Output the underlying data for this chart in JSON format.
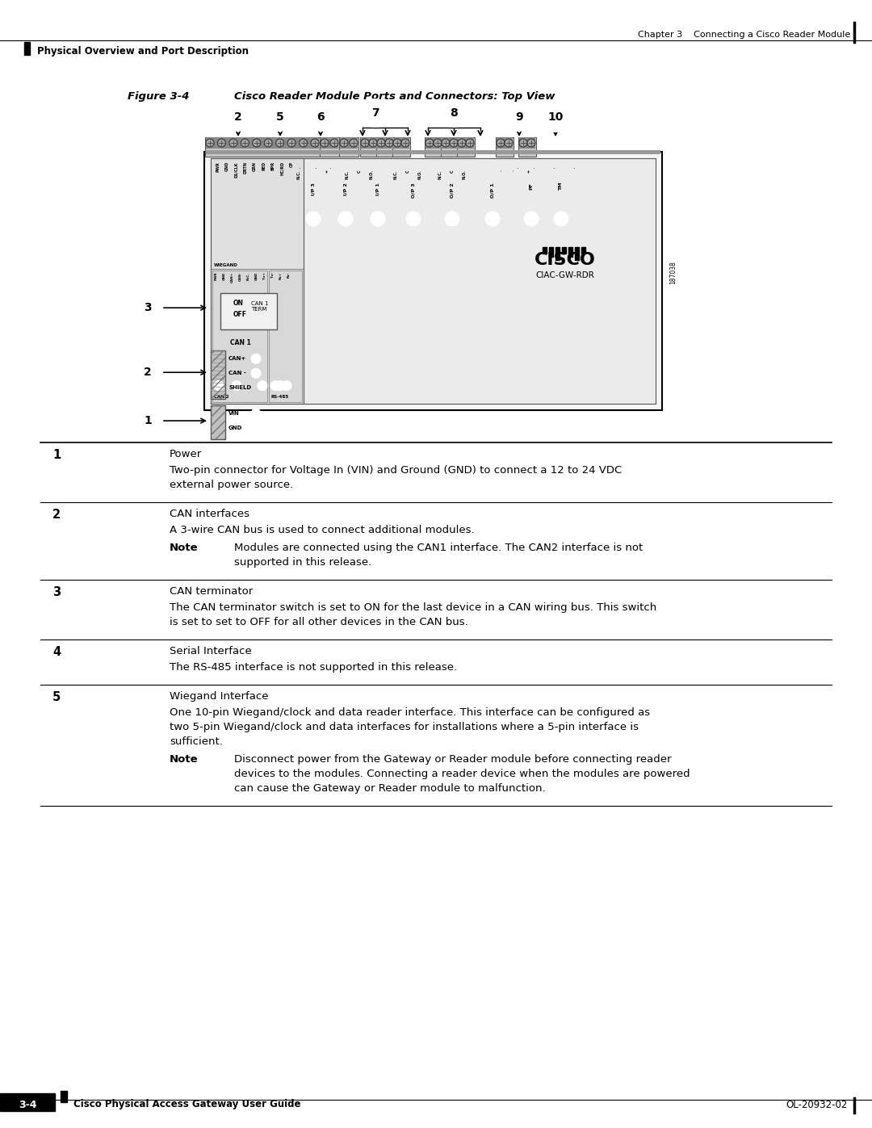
{
  "page_header_right": "Chapter 3    Connecting a Cisco Reader Module",
  "page_header_left": "Physical Overview and Port Description",
  "figure_label": "Figure 3-4",
  "figure_title": "Cisco Reader Module Ports and Connectors: Top View",
  "table_rows": [
    {
      "num": "1",
      "title": "Power",
      "body": "Two-pin connector for Voltage In (VIN) and Ground (GND) to connect a 12 to 24 VDC\nexternal power source.",
      "note": null
    },
    {
      "num": "2",
      "title": "CAN interfaces",
      "body": "A 3-wire CAN bus is used to connect additional modules.",
      "note": "Modules are connected using the CAN1 interface. The CAN2 interface is not\nsupported in this release."
    },
    {
      "num": "3",
      "title": "CAN terminator",
      "body": "The CAN terminator switch is set to ON for the last device in a CAN wiring bus. This switch\nis set to set to OFF for all other devices in the CAN bus.",
      "note": null
    },
    {
      "num": "4",
      "title": "Serial Interface",
      "body": "The RS-485 interface is not supported in this release.",
      "note": null
    },
    {
      "num": "5",
      "title": "Wiegand Interface",
      "body": "One 10-pin Wiegand/clock and data reader interface. This interface can be configured as\ntwo 5-pin Wiegand/clock and data interfaces for installations where a 5-pin interface is\nsufficient.",
      "note": "Disconnect power from the Gateway or Reader module before connecting reader\ndevices to the modules. Connecting a reader device when the modules are powered\ncan cause the Gateway or Reader module to malfunction."
    }
  ],
  "footer_left": "Cisco Physical Access Gateway User Guide",
  "footer_right": "OL-20932-02",
  "page_num": "3-4"
}
